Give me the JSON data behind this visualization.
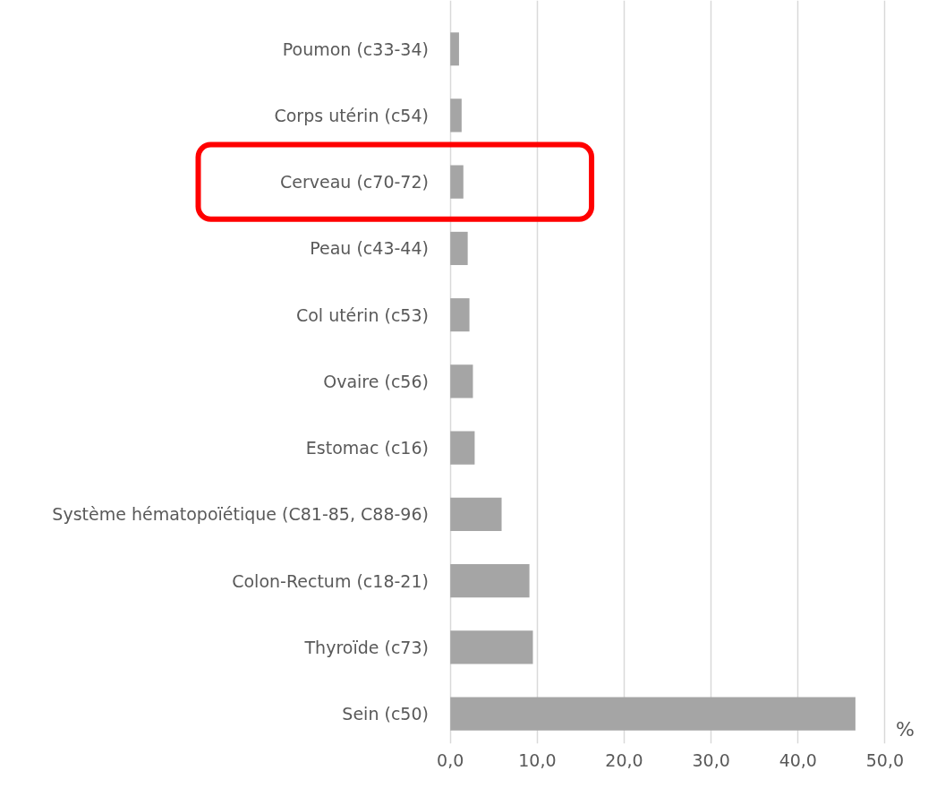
{
  "chart_data": {
    "type": "bar",
    "orientation": "horizontal",
    "xlabel": "%",
    "categories": [
      "Poumon (c33-34)",
      "Corps utérin (c54)",
      "Cerveau (c70-72)",
      "Peau (c43-44)",
      "Col utérin (c53)",
      "Ovaire (c56)",
      "Estomac (c16)",
      "Système hématopoïétique (C81-85, C88-96)",
      "Colon-Rectum (c18-21)",
      "Thyroïde (c73)",
      "Sein (c50)"
    ],
    "values": [
      1.0,
      1.3,
      1.5,
      2.0,
      2.2,
      2.6,
      2.8,
      5.9,
      9.1,
      9.5,
      46.6
    ],
    "color": "#a5a5a5",
    "xlim": [
      0,
      50
    ],
    "xticks": [
      {
        "value": 0,
        "label": "0,0"
      },
      {
        "value": 10,
        "label": "10,0"
      },
      {
        "value": 20,
        "label": "20,0"
      },
      {
        "value": 30,
        "label": "30,0"
      },
      {
        "value": 40,
        "label": "40,0"
      },
      {
        "value": 50,
        "label": "50,0"
      }
    ],
    "grid": "x"
  }
}
